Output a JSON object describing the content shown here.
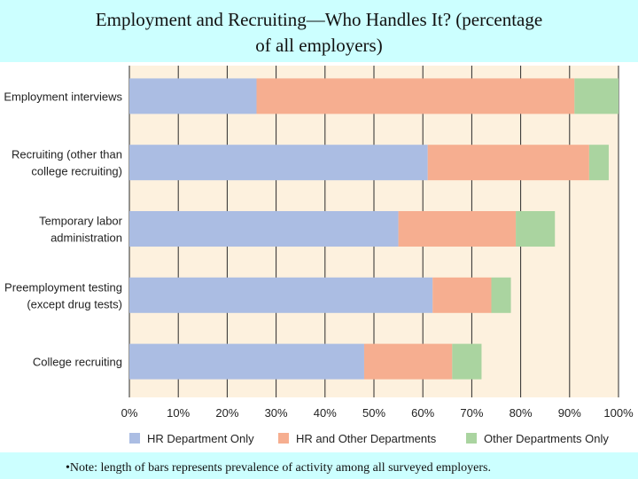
{
  "slide": {
    "title_line1": "Employment and Recruiting—Who Handles It? (percentage",
    "title_line2": "of all employers)",
    "note": "•Note: length of bars represents prevalence of activity among all surveyed employers."
  },
  "chart_data": {
    "type": "bar",
    "orientation": "horizontal",
    "stacked": true,
    "categories": [
      [
        "Employment interviews"
      ],
      [
        "Recruiting (other than",
        "college recruiting)"
      ],
      [
        "Temporary labor",
        "administration"
      ],
      [
        "Preemployment testing",
        "(except drug tests)"
      ],
      [
        "College recruiting"
      ]
    ],
    "series": [
      {
        "name": "HR Department Only",
        "color": "#abbde3",
        "values": [
          26,
          61,
          55,
          62,
          48
        ]
      },
      {
        "name": "HR and Other Departments",
        "color": "#f6ae90",
        "values": [
          65,
          33,
          24,
          12,
          18
        ]
      },
      {
        "name": "Other Departments Only",
        "color": "#aad4a0",
        "values": [
          9,
          4,
          8,
          4,
          6
        ]
      }
    ],
    "xlim": [
      0,
      100
    ],
    "xticks": [
      "0%",
      "10%",
      "20%",
      "30%",
      "40%",
      "50%",
      "60%",
      "70%",
      "80%",
      "90%",
      "100%"
    ],
    "grid": true,
    "legend": "bottom",
    "plot_background": "#fdf1de"
  }
}
